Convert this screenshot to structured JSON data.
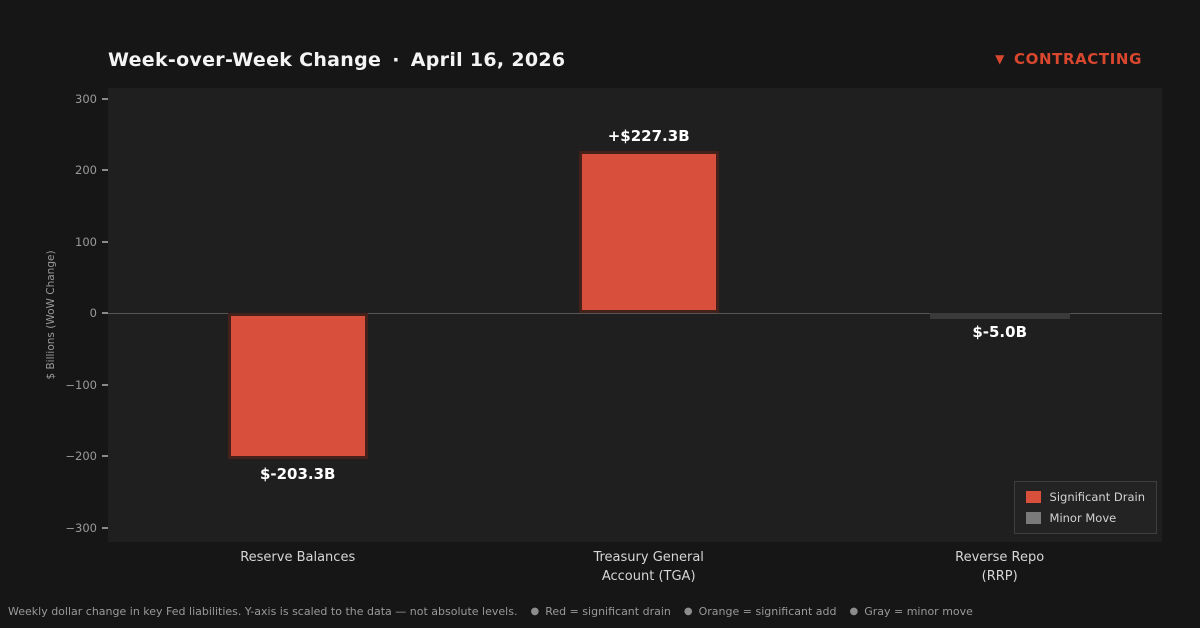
{
  "header": {
    "title": "Week-over-Week Change",
    "separator": "·",
    "date": "April 16, 2026",
    "status_icon": "▼",
    "status_label": "CONTRACTING",
    "status_color": "#d9472f"
  },
  "chart_data": {
    "type": "bar",
    "title": "Week-over-Week Change · April 16, 2026",
    "xlabel": "",
    "ylabel": "$ Billions (WoW Change)",
    "ylim": [
      -320,
      315
    ],
    "yticks": [
      -300,
      -200,
      -100,
      0,
      100,
      200,
      300
    ],
    "grid": false,
    "legend_position": "lower right",
    "categories": [
      "Reserve Balances",
      "Treasury General\nAccount (TGA)",
      "Reverse Repo\n(RRP)"
    ],
    "values": [
      -203.3,
      227.3,
      -5.0
    ],
    "bar_labels": [
      "$-203.3B",
      "+$227.3B",
      "$-5.0B"
    ],
    "bar_colors": [
      "#d8503c",
      "#d8503c",
      "#747474"
    ],
    "bar_edge_colors": [
      "#45211b",
      "#45211b",
      "#3a3a3a"
    ],
    "bar_centers_pct": [
      18.0,
      51.3,
      84.6
    ],
    "bar_width_pct": 13.3
  },
  "legend": {
    "items": [
      {
        "label": "Significant Drain",
        "color": "#d8503c"
      },
      {
        "label": "Minor Move",
        "color": "#7a7a7a"
      }
    ]
  },
  "footer": {
    "note": "Weekly dollar change in key Fed liabilities. Y-axis is scaled to the data — not absolute levels.",
    "bullets": [
      {
        "glyph": "●",
        "text": "Red = significant drain"
      },
      {
        "glyph": "●",
        "text": "Orange = significant add"
      },
      {
        "glyph": "●",
        "text": "Gray = minor move"
      }
    ]
  },
  "colors": {
    "page_bg": "#161616",
    "plot_bg": "#1f1f1f",
    "accent_red": "#d9472f",
    "zero_line": "#555555",
    "tick_text": "#9a9a9a"
  }
}
